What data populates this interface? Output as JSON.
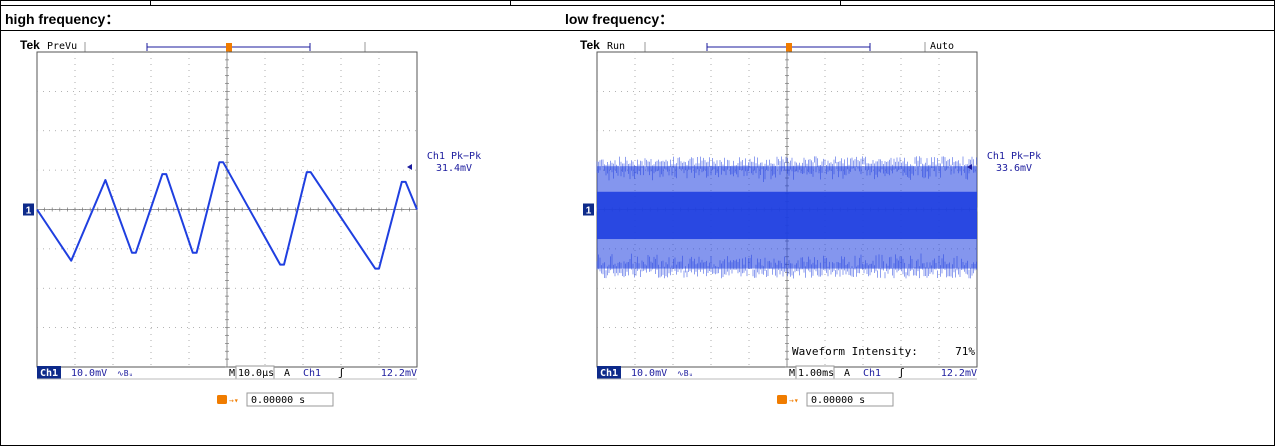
{
  "headers": {
    "left": "high frequency：",
    "right": "low frequency："
  },
  "colors": {
    "trace": "#1f3fe0",
    "ui_blue": "#1b1b9e",
    "trigger_orange": "#f07c00",
    "grid": "#9a9a9a",
    "box_fill": "#0d2a8a"
  },
  "scopes": [
    {
      "brand": "Tek",
      "mode": "PreVu",
      "auto": "",
      "channel_marker": "1",
      "trigger_marker": "T",
      "measurement_label": "Ch1 Pk−Pk",
      "measurement_value": "31.4mV",
      "bottom": {
        "ch_box": "Ch1",
        "ch_scale": "10.0mV",
        "bw_glyph": "∿Bᵤ",
        "timebase_prefix": "M",
        "timebase": "10.0µs",
        "trigger_source_label": "A",
        "trigger_channel": "Ch1",
        "slope_glyph": "ʃ",
        "trigger_level": "12.2mV"
      },
      "waveform_intensity_label": "",
      "waveform_intensity_value": "",
      "trigger_position_glyph": "T→▾",
      "trigger_position": "0.00000 s"
    },
    {
      "brand": "Tek",
      "mode": "Run",
      "auto": "Auto",
      "channel_marker": "1",
      "trigger_marker": "T",
      "measurement_label": "Ch1 Pk−Pk",
      "measurement_value": "33.6mV",
      "bottom": {
        "ch_box": "Ch1",
        "ch_scale": "10.0mV",
        "bw_glyph": "∿Bᵤ",
        "timebase_prefix": "M",
        "timebase": "1.00ms",
        "trigger_source_label": "A",
        "trigger_channel": "Ch1",
        "slope_glyph": "ʃ",
        "trigger_level": "12.2mV"
      },
      "waveform_intensity_label": "Waveform Intensity:",
      "waveform_intensity_value": "71%",
      "trigger_position_glyph": "T→▾",
      "trigger_position": "0.00000 s"
    }
  ],
  "chart_data": [
    {
      "type": "line",
      "title": "high frequency",
      "x_unit": "µs",
      "y_unit": "mV",
      "xlim": [
        -50,
        50
      ],
      "ylim": [
        -40,
        40
      ],
      "divisions": {
        "x": 10,
        "y": 8
      },
      "grid": true,
      "series": [
        {
          "x": [
            -50,
            -41,
            -32,
            -25,
            -24,
            -17,
            -16,
            -9,
            -8,
            -2,
            -1,
            14,
            15,
            21,
            22,
            39,
            40,
            46,
            47,
            50
          ],
          "y": [
            0,
            -13,
            7.5,
            -11,
            -11,
            9,
            9,
            -11,
            -11,
            12,
            12,
            -14,
            -14,
            9.5,
            9.5,
            -15,
            -15,
            7,
            7,
            0
          ]
        }
      ]
    },
    {
      "type": "area",
      "title": "low frequency",
      "x_unit": "ms",
      "y_unit": "mV",
      "xlim": [
        -5,
        5
      ],
      "ylim": [
        -40,
        40
      ],
      "divisions": {
        "x": 10,
        "y": 8
      },
      "grid": true,
      "series": [
        {
          "x": [
            -5,
            5
          ],
          "y_max": [
            11,
            11
          ],
          "y_min": [
            -15,
            -15
          ],
          "core_max": [
            4.5,
            4.5
          ],
          "core_min": [
            -7.5,
            -7.5
          ]
        }
      ]
    }
  ]
}
